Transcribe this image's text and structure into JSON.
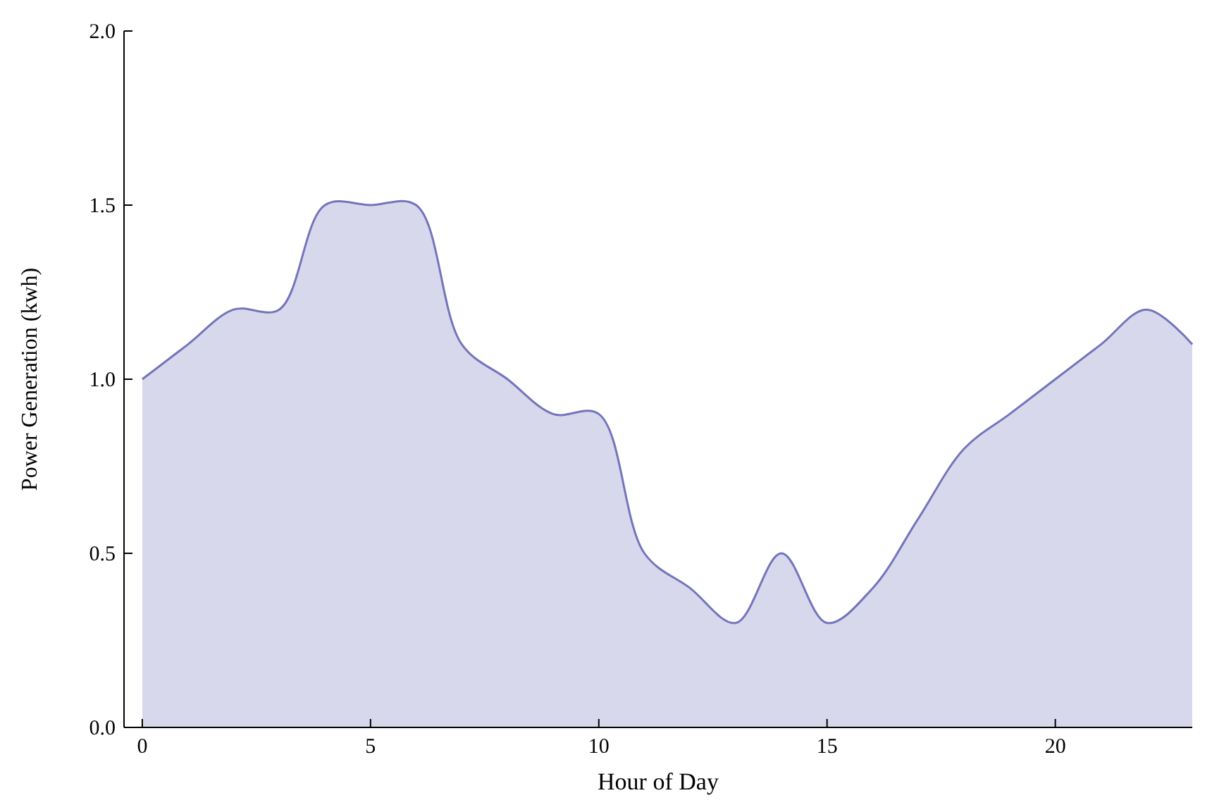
{
  "chart_data": {
    "type": "area",
    "xlabel": "Hour of Day",
    "ylabel": "Power Generation (kwh)",
    "x": [
      0,
      1,
      2,
      3,
      4,
      5,
      6,
      7,
      8,
      9,
      10,
      11,
      12,
      13,
      14,
      15,
      16,
      17,
      18,
      19,
      20,
      21,
      22,
      23
    ],
    "series": [
      {
        "color": "#7474bc",
        "values": [
          1.0,
          1.1,
          1.2,
          1.2,
          1.5,
          1.5,
          1.5,
          1.1,
          1.0,
          0.9,
          0.9,
          0.5,
          0.4,
          0.3,
          0.5,
          0.3,
          0.4,
          0.6,
          0.8,
          0.9,
          1.0,
          1.1,
          1.2,
          1.1
        ]
      }
    ],
    "xlim": [
      -0.4,
      23
    ],
    "xticks": [
      0,
      5,
      10,
      15,
      20
    ],
    "ylim": [
      0,
      2
    ],
    "yticks": [
      {
        "value": 0,
        "label": "0.0"
      },
      {
        "value": 0.5,
        "label": "0.5"
      },
      {
        "value": 1,
        "label": "1.0"
      },
      {
        "value": 1.5,
        "label": "1.5"
      },
      {
        "value": 2,
        "label": "2.0"
      }
    ],
    "grid": false
  }
}
